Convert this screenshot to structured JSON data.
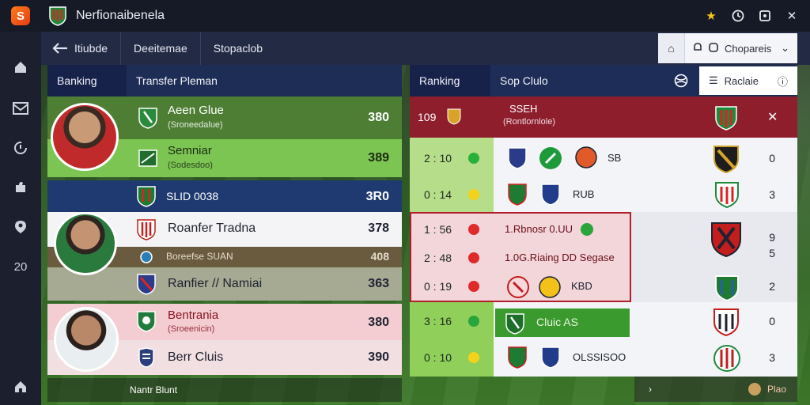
{
  "titlebar": {
    "title": "Nerfionaibenela"
  },
  "nav": {
    "tabs": [
      "Itiubde",
      "Deeitemae",
      "Stopaclob"
    ],
    "dropdown_label": "Chopareis"
  },
  "left_panel": {
    "tabs": [
      "Banking",
      "Transfer Pleman"
    ],
    "rows": [
      {
        "name": "Aeen Glue",
        "sub": "(Sroneedalue)",
        "score": "380"
      },
      {
        "name": "Semniar",
        "sub": "(Sodesdoo)",
        "score": "389"
      },
      {
        "name": "SLID 0038",
        "sub": "",
        "score": "3R0"
      },
      {
        "name": "Roanfer Tradna",
        "sub": "",
        "score": "378"
      },
      {
        "name": "Boreefse SUAN",
        "sub": "",
        "score": "408"
      },
      {
        "name": "Ranfier // Namiai",
        "sub": "",
        "score": "363"
      },
      {
        "name": "Bentrania",
        "sub": "(Sroeenicin)",
        "score": "380"
      },
      {
        "name": "Berr Cluis",
        "sub": "",
        "score": "390"
      }
    ],
    "footer": "Nantr Blunt"
  },
  "right_panel": {
    "tabs": [
      "Ranking",
      "Sop Clulo"
    ],
    "filter_label": "Raclaie",
    "header_row": {
      "num": "109",
      "title": "SSEH",
      "sub": "(Rontlornlole)"
    },
    "rows": [
      {
        "time": "2 : 10",
        "dot": "#27b13a",
        "text": "SB",
        "num": "0"
      },
      {
        "time": "0 : 14",
        "dot": "#f2d21a",
        "text": "RUB",
        "num": "3"
      },
      {
        "time": "1 : 56",
        "dot": "#e02a2a",
        "text": "1.Rbnosr   0.UU",
        "num": "9"
      },
      {
        "time": "2 : 48",
        "dot": "#e02a2a",
        "text": "1.0G.Riaing   DD Segase",
        "num": "5"
      },
      {
        "time": "0 : 19",
        "dot": "#e02a2a",
        "text": "KBD",
        "num": "2"
      },
      {
        "time": "3 : 16",
        "dot": "#2aa53b",
        "text": "Cluic  AS",
        "num": "0"
      },
      {
        "time": "0 : 10",
        "dot": "#f2d21a",
        "text": "OLSSISOO",
        "num": "3"
      }
    ],
    "footer": "Plao"
  }
}
